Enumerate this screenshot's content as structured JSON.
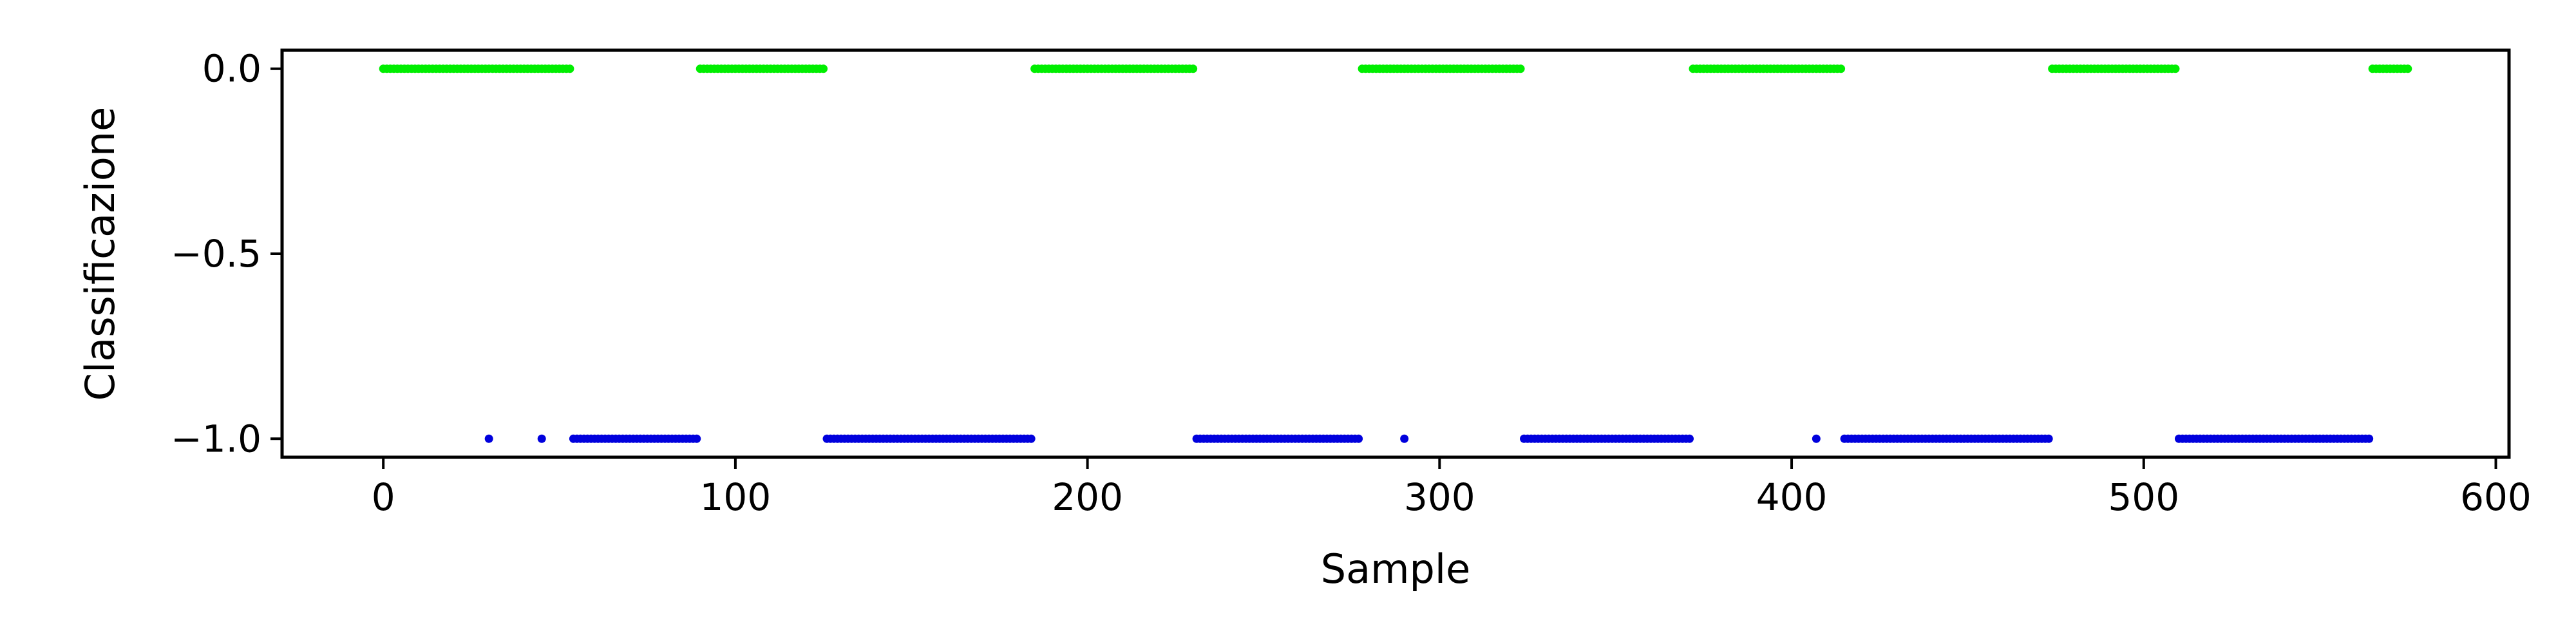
{
  "chart_data": {
    "type": "scatter",
    "title": "",
    "xlabel": "Sample",
    "ylabel": "Classificazione",
    "xlim": [
      -28.75,
      603.75
    ],
    "ylim": [
      -1.05,
      0.05
    ],
    "xticks": [
      0,
      100,
      200,
      300,
      400,
      500,
      600
    ],
    "yticks": [
      0.0,
      -0.5,
      -1.0
    ],
    "xtick_labels": [
      "0",
      "100",
      "200",
      "300",
      "400",
      "500",
      "600"
    ],
    "ytick_labels": [
      "0.0",
      "−0.5",
      "−1.0"
    ],
    "grid": false,
    "legend": "none",
    "series": [
      {
        "color": "#00ee00",
        "y": 0.0,
        "x_ranges": [
          [
            0,
            53
          ],
          [
            90,
            125
          ],
          [
            185,
            230
          ],
          [
            278,
            323
          ],
          [
            372,
            414
          ],
          [
            474,
            509
          ],
          [
            565,
            575
          ]
        ],
        "x_points": []
      },
      {
        "color": "#0000dd",
        "y": -1.0,
        "x_ranges": [
          [
            54,
            89
          ],
          [
            126,
            184
          ],
          [
            231,
            277
          ],
          [
            324,
            371
          ],
          [
            415,
            473
          ],
          [
            510,
            564
          ]
        ],
        "x_points": [
          30,
          45,
          290,
          407
        ]
      }
    ]
  }
}
